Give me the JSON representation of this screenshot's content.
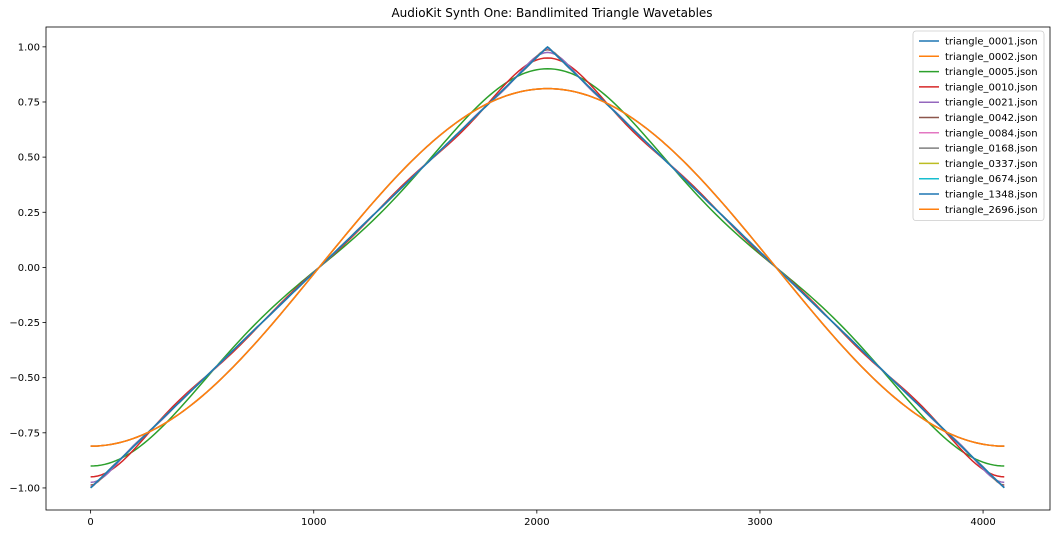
{
  "chart_data": {
    "type": "line",
    "title": "AudioKit Synth One: Bandlimited Triangle Wavetables",
    "xlabel": "",
    "ylabel": "",
    "xlim": [
      -200,
      4300
    ],
    "ylim": [
      -1.1,
      1.09
    ],
    "x_ticks": [
      0,
      1000,
      2000,
      3000,
      4000
    ],
    "x_tick_labels": [
      "0",
      "1000",
      "2000",
      "3000",
      "4000"
    ],
    "y_ticks": [
      -1.0,
      -0.75,
      -0.5,
      -0.25,
      0.0,
      0.25,
      0.5,
      0.75,
      1.0
    ],
    "y_tick_labels": [
      "−1.00",
      "−0.75",
      "−0.50",
      "−0.25",
      "0.00",
      "0.25",
      "0.50",
      "0.75",
      "1.00"
    ],
    "grid": false,
    "legend_position": "top-right",
    "samples": 4096,
    "series": [
      {
        "name": "triangle_0001.json",
        "harmonics": 1,
        "color": "#1f77b4"
      },
      {
        "name": "triangle_0002.json",
        "harmonics": 1,
        "color": "#ff7f0e"
      },
      {
        "name": "triangle_0005.json",
        "harmonics": 2,
        "color": "#2ca02c"
      },
      {
        "name": "triangle_0010.json",
        "harmonics": 4,
        "color": "#d62728"
      },
      {
        "name": "triangle_0021.json",
        "harmonics": 8,
        "color": "#9467bd"
      },
      {
        "name": "triangle_0042.json",
        "harmonics": 16,
        "color": "#8c564b"
      },
      {
        "name": "triangle_0084.json",
        "harmonics": 32,
        "color": "#e377c2"
      },
      {
        "name": "triangle_0168.json",
        "harmonics": 64,
        "color": "#7f7f7f"
      },
      {
        "name": "triangle_0337.json",
        "harmonics": 128,
        "color": "#bcbd22"
      },
      {
        "name": "triangle_0674.json",
        "harmonics": 256,
        "color": "#17becf"
      },
      {
        "name": "triangle_1348.json",
        "harmonics": 512,
        "color": "#1f77b4"
      },
      {
        "name": "triangle_2696.json",
        "harmonics": 1,
        "color": "#ff7f0e"
      }
    ]
  }
}
